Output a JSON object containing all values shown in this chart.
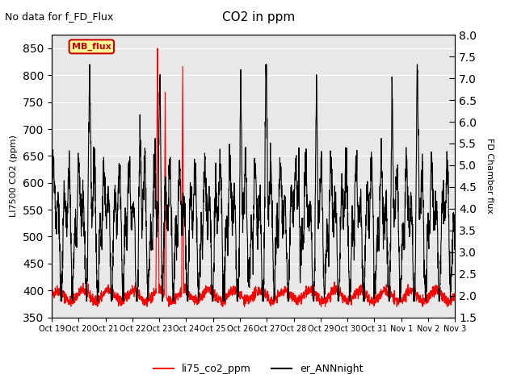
{
  "title": "CO2 in ppm",
  "subtitle": "No data for f_FD_Flux",
  "ylabel_left": "LI7500 CO2 (ppm)",
  "ylabel_right": "FD Chamber flux",
  "ylim_left": [
    350,
    875
  ],
  "ylim_right": [
    1.5,
    8.0
  ],
  "yticks_left": [
    350,
    400,
    450,
    500,
    550,
    600,
    650,
    700,
    750,
    800,
    850
  ],
  "yticks_right": [
    1.5,
    2.0,
    2.5,
    3.0,
    3.5,
    4.0,
    4.5,
    5.0,
    5.5,
    6.0,
    6.5,
    7.0,
    7.5,
    8.0
  ],
  "xtick_labels": [
    "Oct 19",
    "Oct 20",
    "Oct 21",
    "Oct 22",
    "Oct 23",
    "Oct 24",
    "Oct 25",
    "Oct 26",
    "Oct 27",
    "Oct 28",
    "Oct 29",
    "Oct 30",
    "Oct 31",
    "Nov 1",
    "Nov 2",
    "Nov 3"
  ],
  "color_red": "#ff0000",
  "color_black": "#000000",
  "color_bg": "#e8e8e8",
  "legend_entries": [
    "li75_co2_ppm",
    "er_ANNnight"
  ],
  "mb_flux_box_color": "#ffff99",
  "mb_flux_text_color": "#cc0000",
  "mb_flux_border_color": "#cc0000"
}
